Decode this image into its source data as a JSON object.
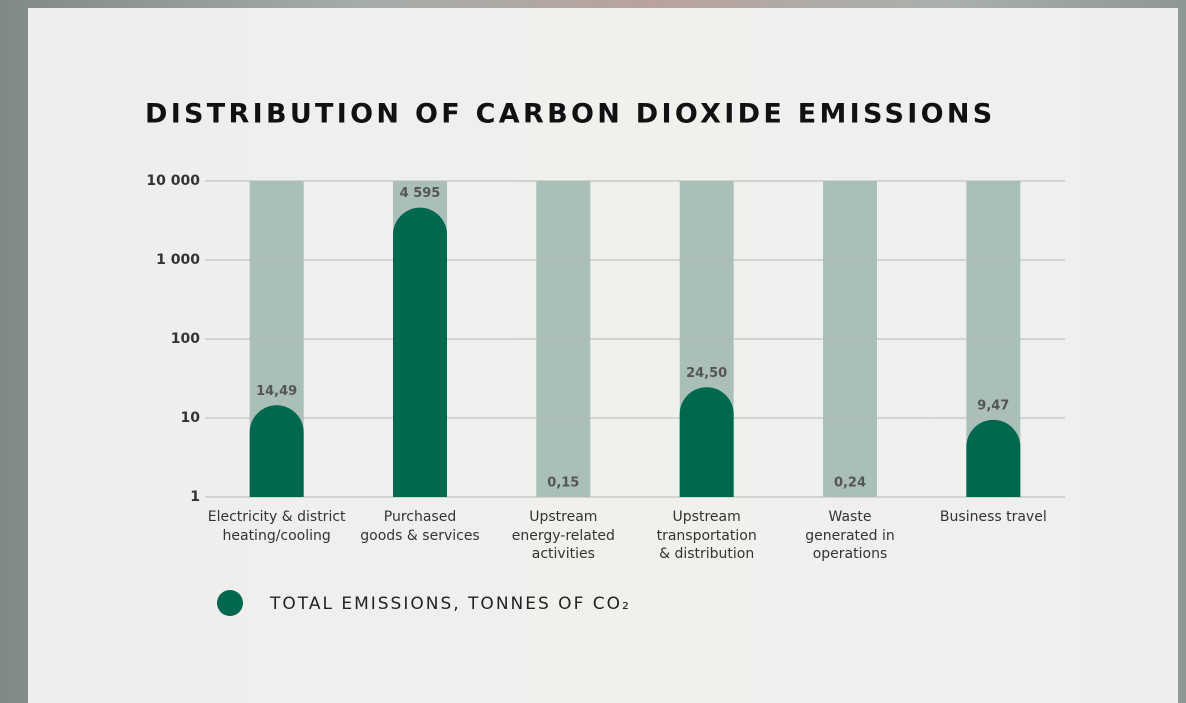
{
  "chart_data": {
    "type": "bar",
    "title": "DISTRIBUTION OF CARBON DIOXIDE EMISSIONS",
    "categories": [
      "Electricity & district\nheating/cooling",
      "Purchased\ngoods & services",
      "Upstream\nenergy-related\nactivities",
      "Upstream\ntransportation\n& distribution",
      "Waste\ngenerated in\noperations",
      "Business travel"
    ],
    "series": [
      {
        "name": "TOTAL EMISSIONS, TONNES OF CO₂",
        "color": "#00684f",
        "values": [
          14.49,
          4595,
          0.15,
          24.5,
          0.24,
          9.47
        ],
        "value_labels": [
          "14,49",
          "4 595",
          "0,15",
          "24,50",
          "0,24",
          "9,47"
        ]
      }
    ],
    "ylim": [
      1,
      10000
    ],
    "yticks": [
      1,
      10,
      100,
      {
        "value": 1000,
        "label": "1 000"
      },
      {
        "value": 10000,
        "label": "10 000"
      }
    ],
    "log_scale": true,
    "grid": true
  }
}
